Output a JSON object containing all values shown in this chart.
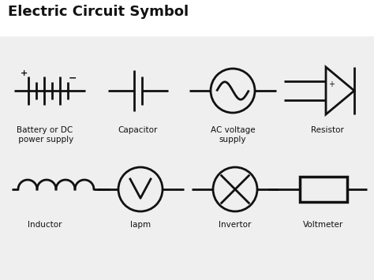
{
  "title": "Electric Circuit Symbol",
  "bg_color": "#efefef",
  "title_bg": "#ffffff",
  "line_color": "#111111",
  "lw": 2.0,
  "labels_row1": [
    "Battery or DC\n power supply",
    "Capacitor",
    "AC voltage\nsupply",
    "Resistor"
  ],
  "labels_row2": [
    "Inductor",
    "Iapm",
    "Invertor",
    "Voltmeter"
  ]
}
